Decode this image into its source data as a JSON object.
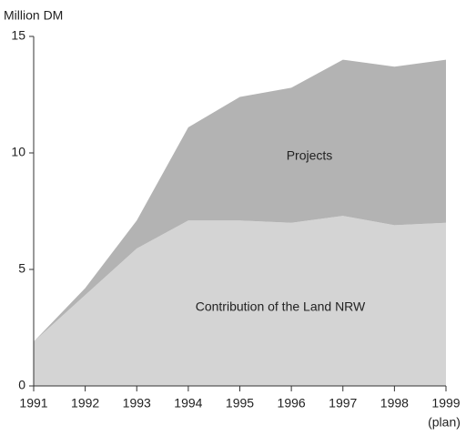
{
  "chart_data": {
    "type": "stacked_area",
    "y_label": "Million DM",
    "categories": [
      "1991",
      "1992",
      "1993",
      "1994",
      "1995",
      "1996",
      "1997",
      "1998",
      "1999"
    ],
    "last_category_note": "(plan)",
    "series": [
      {
        "name": "Contribution of the Land NRW",
        "color": "#d4d4d4",
        "values": [
          1.9,
          3.9,
          5.9,
          7.1,
          7.1,
          7.0,
          7.3,
          6.9,
          7.0
        ]
      },
      {
        "name": "Projects",
        "color": "#b3b3b3",
        "values": [
          0,
          0.3,
          1.2,
          4.0,
          5.3,
          5.8,
          6.7,
          6.8,
          7.0
        ]
      }
    ],
    "ylim": [
      0,
      15
    ],
    "yticks": [
      0,
      5,
      10,
      15
    ]
  }
}
